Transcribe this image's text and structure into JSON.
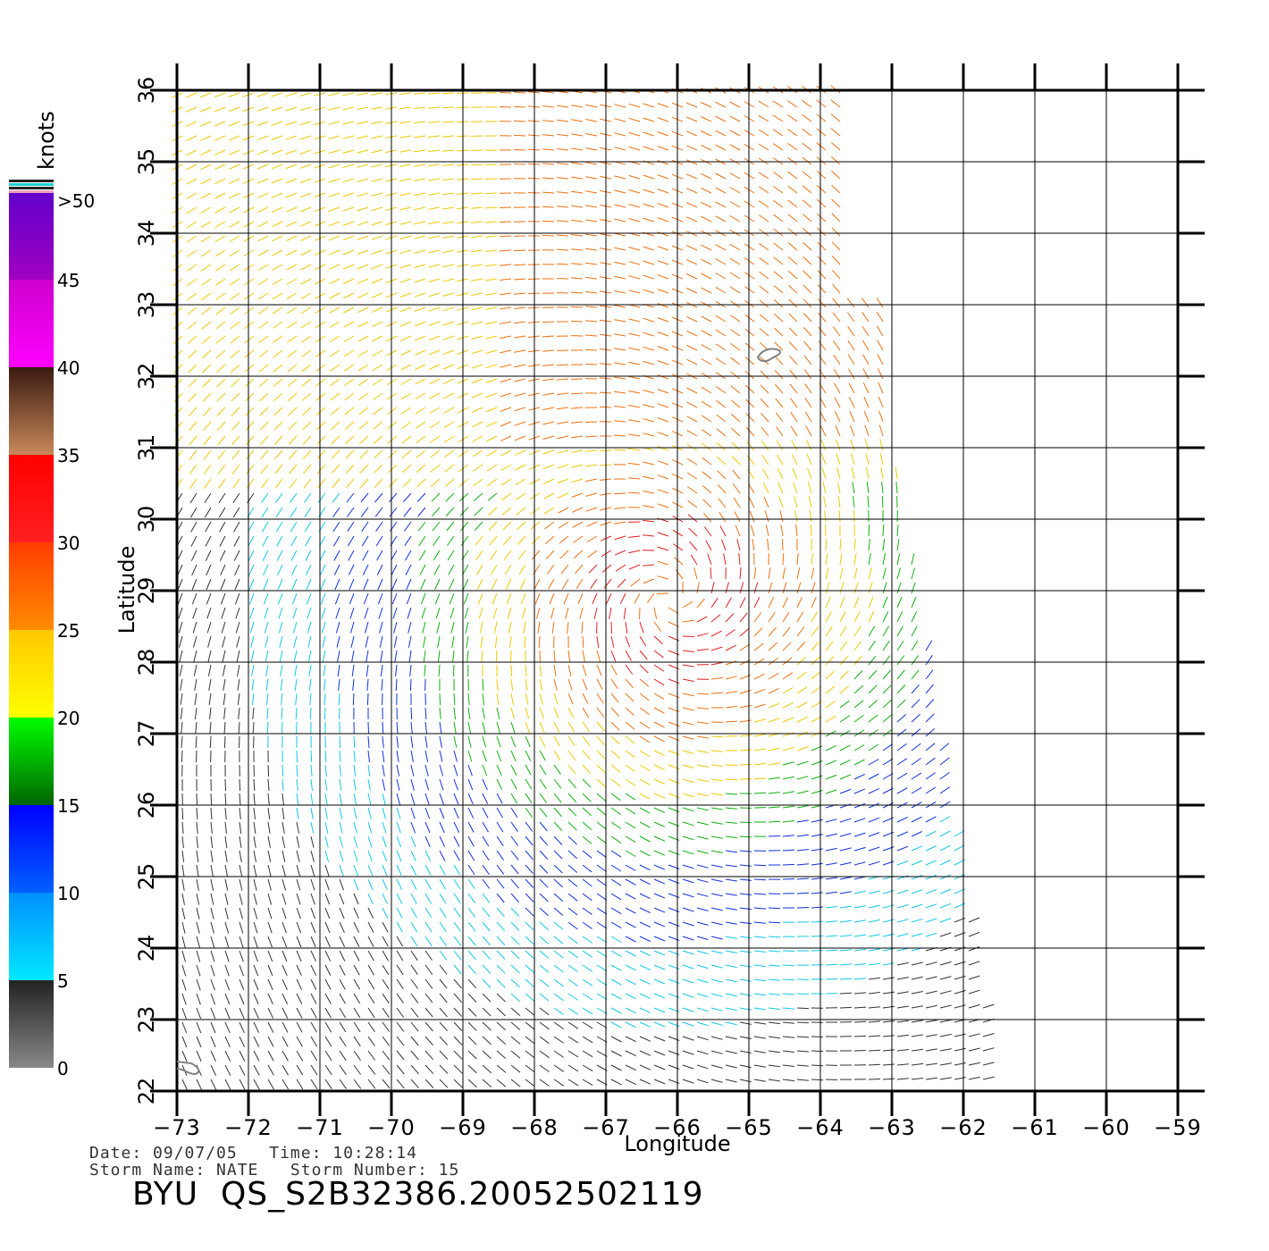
{
  "colorbar": {
    "unit_label": "knots",
    "segments": [
      {
        "from": 0,
        "to": 5,
        "colors": [
          "#888888",
          "#222222"
        ]
      },
      {
        "from": 5,
        "to": 10,
        "colors": [
          "#00e8ff",
          "#0090ff"
        ]
      },
      {
        "from": 10,
        "to": 15,
        "colors": [
          "#0060ff",
          "#0000ff"
        ]
      },
      {
        "from": 15,
        "to": 20,
        "colors": [
          "#006400",
          "#00ff00"
        ]
      },
      {
        "from": 20,
        "to": 25,
        "colors": [
          "#ffff00",
          "#ffc800"
        ]
      },
      {
        "from": 25,
        "to": 30,
        "colors": [
          "#ff8c00",
          "#ff3c00"
        ]
      },
      {
        "from": 30,
        "to": 35,
        "colors": [
          "#ff2020",
          "#ff0000"
        ]
      },
      {
        "from": 35,
        "to": 40,
        "colors": [
          "#c8885a",
          "#3a1a10"
        ]
      },
      {
        "from": 40,
        "to": 45,
        "colors": [
          "#ff00ff",
          "#cc00cc"
        ]
      },
      {
        "from": 45,
        "to": 50,
        "colors": [
          "#a000c0",
          "#6000cc"
        ]
      }
    ],
    "tick_labels": [
      "0",
      "5",
      "10",
      "15",
      "20",
      "25",
      "30",
      "35",
      "40",
      "45",
      ">50"
    ]
  },
  "map": {
    "lon_ticks": [
      -73,
      -72,
      -71,
      -70,
      -69,
      -68,
      -67,
      -66,
      -65,
      -64,
      -63,
      -62,
      -61,
      -60,
      -59
    ],
    "lat_ticks": [
      22,
      23,
      24,
      25,
      26,
      27,
      28,
      29,
      30,
      31,
      32,
      33,
      34,
      35,
      36
    ],
    "xlabel": "Longitude",
    "ylabel": "Latitude",
    "storm_center": {
      "lon": -66.1,
      "lat": 28.9
    }
  },
  "footer": {
    "date_line": "Date: 09/07/05   Time: 10:28:14",
    "storm_line": "Storm Name: NATE   Storm Number: 15",
    "title": "BYU  QS_S2B32386.20052502119"
  }
}
